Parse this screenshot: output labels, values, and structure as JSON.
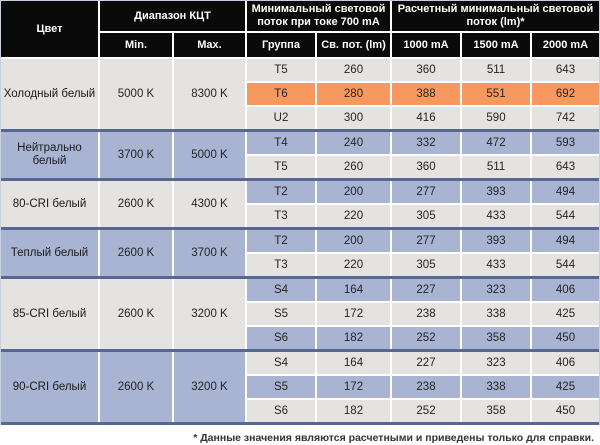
{
  "header": {
    "color": "Цвет",
    "kct_range": "Диапазон КЦТ",
    "min_flux_700": "Минимальный световой поток при токе 700 mA",
    "calc_min_flux": "Расчетный минимальный световой поток (lm)*",
    "min": "Min.",
    "max": "Max.",
    "group": "Группа",
    "flux": "Св. пот. (lm)",
    "ma_1000": "1000 mA",
    "ma_1500": "1500 mA",
    "ma_2000": "2000 mA"
  },
  "sections": [
    {
      "color": "Холодный белый",
      "min": "5000 K",
      "max": "8300 K",
      "rows": [
        {
          "group": "T5",
          "highlight": false,
          "values": [
            "260",
            "360",
            "511",
            "643"
          ]
        },
        {
          "group": "T6",
          "highlight": true,
          "values": [
            "280",
            "388",
            "551",
            "692"
          ]
        },
        {
          "group": "U2",
          "highlight": false,
          "values": [
            "300",
            "416",
            "590",
            "742"
          ]
        }
      ]
    },
    {
      "color": "Нейтрально белый",
      "min": "3700 K",
      "max": "5000 K",
      "rows": [
        {
          "group": "T4",
          "highlight": false,
          "values": [
            "240",
            "332",
            "472",
            "593"
          ]
        },
        {
          "group": "T5",
          "highlight": false,
          "values": [
            "260",
            "360",
            "511",
            "643"
          ]
        }
      ]
    },
    {
      "color": "80-CRI белый",
      "min": "2600 K",
      "max": "4300 K",
      "rows": [
        {
          "group": "T2",
          "highlight": false,
          "values": [
            "200",
            "277",
            "393",
            "494"
          ]
        },
        {
          "group": "T3",
          "highlight": false,
          "values": [
            "220",
            "305",
            "433",
            "544"
          ]
        }
      ]
    },
    {
      "color": "Теплый белый",
      "min": "2600 K",
      "max": "3700 K",
      "rows": [
        {
          "group": "T2",
          "highlight": false,
          "values": [
            "200",
            "277",
            "393",
            "494"
          ]
        },
        {
          "group": "T3",
          "highlight": false,
          "values": [
            "220",
            "305",
            "433",
            "544"
          ]
        }
      ]
    },
    {
      "color": "85-CRI белый",
      "min": "2600 K",
      "max": "3200 K",
      "rows": [
        {
          "group": "S4",
          "highlight": false,
          "values": [
            "164",
            "227",
            "323",
            "406"
          ]
        },
        {
          "group": "S5",
          "highlight": false,
          "values": [
            "172",
            "238",
            "338",
            "425"
          ]
        },
        {
          "group": "S6",
          "highlight": false,
          "values": [
            "182",
            "252",
            "358",
            "450"
          ]
        }
      ]
    },
    {
      "color": "90-CRI белый",
      "min": "2600 K",
      "max": "3200 K",
      "rows": [
        {
          "group": "S4",
          "highlight": false,
          "values": [
            "164",
            "227",
            "323",
            "406"
          ]
        },
        {
          "group": "S5",
          "highlight": false,
          "values": [
            "172",
            "238",
            "338",
            "425"
          ]
        },
        {
          "group": "S6",
          "highlight": false,
          "values": [
            "182",
            "252",
            "358",
            "450"
          ]
        }
      ]
    }
  ],
  "footnote": "* Данные значения являются расчетными и приведены только для справки.",
  "colors": {
    "header_bg": "#0a0a0a",
    "row_gray": "#e4e3e1",
    "row_blue": "#a9b4d3",
    "highlight_orange": "#f7995f",
    "section_divider": "#56688f"
  }
}
